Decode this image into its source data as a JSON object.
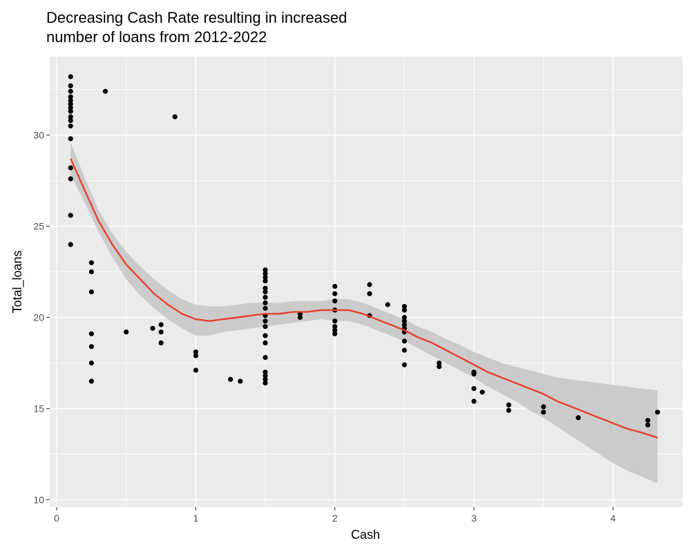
{
  "chart_data": {
    "type": "scatter",
    "title": "Decreasing Cash Rate resulting in increased number of loans from 2012-2022",
    "title_lines": [
      "Decreasing Cash Rate resulting in increased",
      "number of loans from 2012-2022"
    ],
    "xlabel": "Cash",
    "ylabel": "Total_loans",
    "xlim": [
      -0.05,
      4.5
    ],
    "ylim": [
      9.6,
      34.3
    ],
    "xticks": [
      0,
      1,
      2,
      3,
      4
    ],
    "yticks": [
      10,
      15,
      20,
      25,
      30
    ],
    "grid": true,
    "legend": "none",
    "colors": {
      "panel_background": "#ebebeb",
      "gridline": "#ffffff",
      "points": "#000000",
      "smooth_line": "#e8412a",
      "confidence_band": "#c8c8c8",
      "tick_text": "#4d4d4d"
    },
    "points": [
      {
        "x": 0.1,
        "y": 33.2
      },
      {
        "x": 0.1,
        "y": 32.7
      },
      {
        "x": 0.1,
        "y": 32.4
      },
      {
        "x": 0.1,
        "y": 32.1
      },
      {
        "x": 0.1,
        "y": 31.9
      },
      {
        "x": 0.1,
        "y": 31.7
      },
      {
        "x": 0.1,
        "y": 31.5
      },
      {
        "x": 0.1,
        "y": 31.3
      },
      {
        "x": 0.1,
        "y": 31.0
      },
      {
        "x": 0.1,
        "y": 30.8
      },
      {
        "x": 0.1,
        "y": 30.5
      },
      {
        "x": 0.1,
        "y": 29.8
      },
      {
        "x": 0.1,
        "y": 28.2
      },
      {
        "x": 0.1,
        "y": 27.6
      },
      {
        "x": 0.1,
        "y": 25.6
      },
      {
        "x": 0.1,
        "y": 24.0
      },
      {
        "x": 0.35,
        "y": 32.4
      },
      {
        "x": 0.85,
        "y": 31.0
      },
      {
        "x": 0.25,
        "y": 23.0
      },
      {
        "x": 0.25,
        "y": 22.5
      },
      {
        "x": 0.25,
        "y": 21.4
      },
      {
        "x": 0.25,
        "y": 19.1
      },
      {
        "x": 0.25,
        "y": 18.4
      },
      {
        "x": 0.25,
        "y": 17.5
      },
      {
        "x": 0.25,
        "y": 16.5
      },
      {
        "x": 0.5,
        "y": 19.2
      },
      {
        "x": 0.69,
        "y": 19.4
      },
      {
        "x": 0.75,
        "y": 19.6
      },
      {
        "x": 0.75,
        "y": 19.2
      },
      {
        "x": 0.75,
        "y": 18.6
      },
      {
        "x": 1.0,
        "y": 18.1
      },
      {
        "x": 1.0,
        "y": 17.9
      },
      {
        "x": 1.0,
        "y": 17.1
      },
      {
        "x": 1.25,
        "y": 16.6
      },
      {
        "x": 1.32,
        "y": 16.5
      },
      {
        "x": 1.5,
        "y": 22.6
      },
      {
        "x": 1.5,
        "y": 22.4
      },
      {
        "x": 1.5,
        "y": 22.2
      },
      {
        "x": 1.5,
        "y": 22.0
      },
      {
        "x": 1.5,
        "y": 21.6
      },
      {
        "x": 1.5,
        "y": 21.4
      },
      {
        "x": 1.5,
        "y": 21.1
      },
      {
        "x": 1.5,
        "y": 20.8
      },
      {
        "x": 1.5,
        "y": 20.5
      },
      {
        "x": 1.5,
        "y": 20.1
      },
      {
        "x": 1.5,
        "y": 19.8
      },
      {
        "x": 1.5,
        "y": 19.5
      },
      {
        "x": 1.5,
        "y": 19.0
      },
      {
        "x": 1.5,
        "y": 18.6
      },
      {
        "x": 1.5,
        "y": 17.8
      },
      {
        "x": 1.5,
        "y": 17.0
      },
      {
        "x": 1.5,
        "y": 16.8
      },
      {
        "x": 1.5,
        "y": 16.6
      },
      {
        "x": 1.5,
        "y": 16.4
      },
      {
        "x": 1.75,
        "y": 20.2
      },
      {
        "x": 1.75,
        "y": 20.0
      },
      {
        "x": 2.0,
        "y": 21.7
      },
      {
        "x": 2.0,
        "y": 21.3
      },
      {
        "x": 2.0,
        "y": 20.9
      },
      {
        "x": 2.0,
        "y": 20.4
      },
      {
        "x": 2.0,
        "y": 19.8
      },
      {
        "x": 2.0,
        "y": 19.5
      },
      {
        "x": 2.0,
        "y": 19.3
      },
      {
        "x": 2.0,
        "y": 19.1
      },
      {
        "x": 2.25,
        "y": 21.8
      },
      {
        "x": 2.25,
        "y": 21.3
      },
      {
        "x": 2.25,
        "y": 20.1
      },
      {
        "x": 2.38,
        "y": 20.7
      },
      {
        "x": 2.5,
        "y": 20.6
      },
      {
        "x": 2.5,
        "y": 20.4
      },
      {
        "x": 2.5,
        "y": 20.0
      },
      {
        "x": 2.5,
        "y": 19.8
      },
      {
        "x": 2.5,
        "y": 19.6
      },
      {
        "x": 2.5,
        "y": 19.4
      },
      {
        "x": 2.5,
        "y": 19.2
      },
      {
        "x": 2.5,
        "y": 18.7
      },
      {
        "x": 2.5,
        "y": 18.2
      },
      {
        "x": 2.5,
        "y": 17.4
      },
      {
        "x": 2.75,
        "y": 17.5
      },
      {
        "x": 2.75,
        "y": 17.3
      },
      {
        "x": 3.0,
        "y": 17.0
      },
      {
        "x": 3.0,
        "y": 16.9
      },
      {
        "x": 3.0,
        "y": 16.1
      },
      {
        "x": 3.0,
        "y": 15.4
      },
      {
        "x": 3.06,
        "y": 15.9
      },
      {
        "x": 3.25,
        "y": 15.2
      },
      {
        "x": 3.25,
        "y": 14.9
      },
      {
        "x": 3.5,
        "y": 15.1
      },
      {
        "x": 3.5,
        "y": 14.8
      },
      {
        "x": 3.75,
        "y": 14.5
      },
      {
        "x": 4.25,
        "y": 14.35
      },
      {
        "x": 4.25,
        "y": 14.1
      },
      {
        "x": 4.32,
        "y": 14.8
      }
    ],
    "smooth": {
      "x": [
        0.1,
        0.2,
        0.3,
        0.4,
        0.5,
        0.6,
        0.7,
        0.8,
        0.9,
        1.0,
        1.1,
        1.2,
        1.3,
        1.4,
        1.5,
        1.6,
        1.7,
        1.8,
        1.9,
        2.0,
        2.1,
        2.2,
        2.3,
        2.4,
        2.5,
        2.6,
        2.7,
        2.8,
        2.9,
        3.0,
        3.1,
        3.2,
        3.3,
        3.4,
        3.5,
        3.6,
        3.7,
        3.8,
        3.9,
        4.0,
        4.1,
        4.2,
        4.32
      ],
      "y": [
        28.7,
        27.0,
        25.3,
        24.0,
        22.9,
        22.1,
        21.3,
        20.7,
        20.2,
        19.9,
        19.8,
        19.9,
        20.0,
        20.1,
        20.2,
        20.2,
        20.3,
        20.3,
        20.4,
        20.4,
        20.4,
        20.2,
        19.9,
        19.6,
        19.3,
        18.9,
        18.6,
        18.2,
        17.8,
        17.4,
        17.0,
        16.7,
        16.4,
        16.1,
        15.8,
        15.4,
        15.1,
        14.8,
        14.5,
        14.2,
        13.9,
        13.7,
        13.4
      ],
      "lower": [
        27.8,
        26.3,
        24.7,
        23.3,
        22.1,
        21.2,
        20.5,
        19.9,
        19.4,
        19.0,
        19.0,
        19.2,
        19.3,
        19.4,
        19.5,
        19.6,
        19.7,
        19.8,
        19.9,
        19.8,
        19.8,
        19.6,
        19.3,
        19.0,
        18.7,
        18.3,
        17.9,
        17.5,
        17.1,
        16.7,
        16.2,
        15.8,
        15.4,
        14.9,
        14.5,
        14.0,
        13.5,
        13.0,
        12.5,
        12.0,
        11.6,
        11.3,
        10.9
      ],
      "upper": [
        29.6,
        27.7,
        25.9,
        24.6,
        23.6,
        22.8,
        22.1,
        21.5,
        21.0,
        20.7,
        20.6,
        20.6,
        20.7,
        20.8,
        20.8,
        20.8,
        20.9,
        20.9,
        20.9,
        21.0,
        21.0,
        20.8,
        20.5,
        20.2,
        19.9,
        19.5,
        19.2,
        18.8,
        18.5,
        18.1,
        17.8,
        17.5,
        17.3,
        17.1,
        16.9,
        16.7,
        16.6,
        16.5,
        16.4,
        16.3,
        16.2,
        16.1,
        16.0
      ]
    }
  }
}
